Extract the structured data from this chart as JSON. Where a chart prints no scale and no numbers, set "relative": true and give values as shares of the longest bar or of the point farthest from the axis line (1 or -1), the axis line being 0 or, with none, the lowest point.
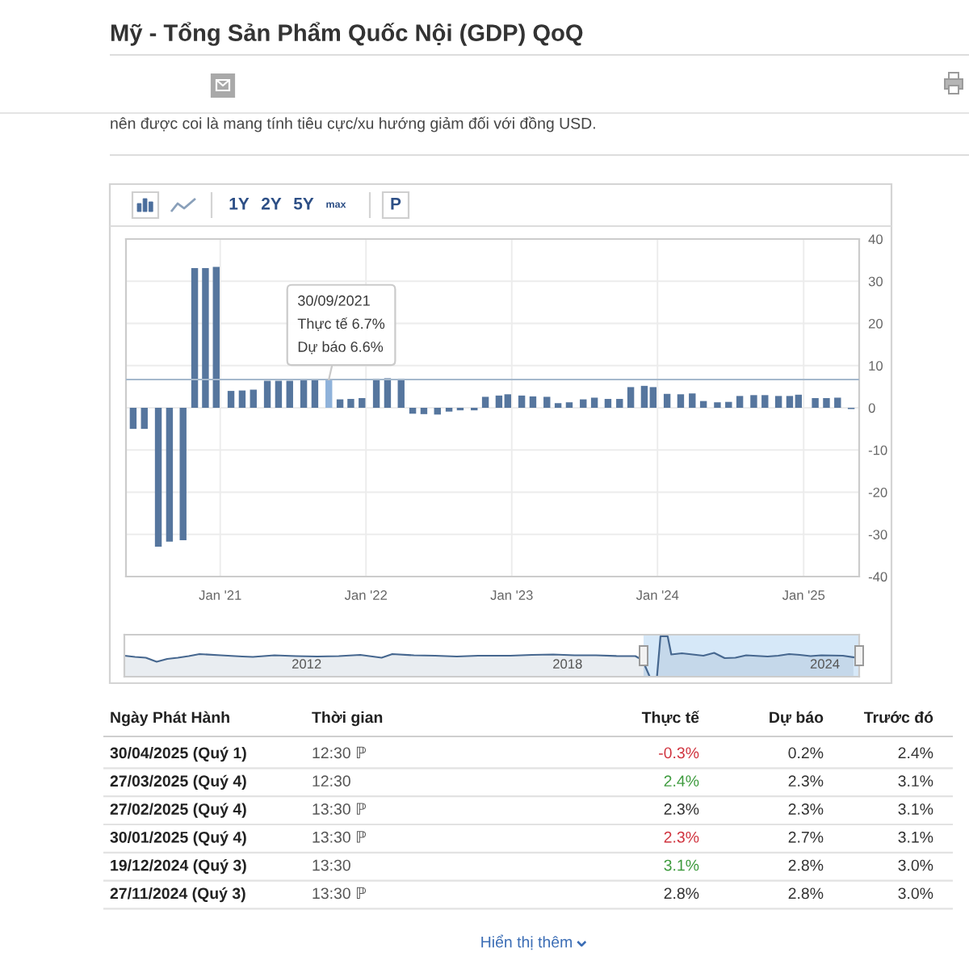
{
  "chart_data": [
    {
      "type": "bar",
      "title": "Mỹ - Tổng Sản Phẩm Quốc Nội (GDP) QoQ",
      "annotations": [
        "nên được coi là mang tính tiêu cực/xu hướng giảm đối với đồng USD.",
        "1Y",
        "2Y",
        "5Y",
        "max",
        "P",
        {
          "text": "30/09/2021\nThực tế 6.7%\nDự báo 6.6%",
          "x": "2021-09-30",
          "y": 6.7
        }
      ],
      "x": [
        "2020-05-28",
        "2020-06-25",
        "2020-07-30",
        "2020-08-27",
        "2020-09-30",
        "2020-10-29",
        "2020-11-25",
        "2020-12-22",
        "2021-01-28",
        "2021-02-25",
        "2021-03-25",
        "2021-04-29",
        "2021-05-27",
        "2021-06-24",
        "2021-07-29",
        "2021-08-26",
        "2021-09-30",
        "2021-10-28",
        "2021-11-24",
        "2021-12-22",
        "2022-01-27",
        "2022-02-24",
        "2022-03-30",
        "2022-04-28",
        "2022-05-26",
        "2022-06-29",
        "2022-07-28",
        "2022-08-25",
        "2022-09-29",
        "2022-10-27",
        "2022-11-30",
        "2022-12-22",
        "2023-01-26",
        "2023-02-23",
        "2023-03-30",
        "2023-04-27",
        "2023-05-25",
        "2023-06-29",
        "2023-07-27",
        "2023-08-30",
        "2023-09-28",
        "2023-10-26",
        "2023-11-29",
        "2023-12-21",
        "2024-01-25",
        "2024-02-28",
        "2024-03-28",
        "2024-04-25",
        "2024-05-30",
        "2024-06-27",
        "2024-07-25",
        "2024-08-29",
        "2024-09-26",
        "2024-10-30",
        "2024-11-27",
        "2024-12-19",
        "2025-01-30",
        "2025-02-27",
        "2025-03-27",
        "2025-04-30"
      ],
      "values": [
        -5.0,
        -5.0,
        -32.9,
        -31.7,
        -31.4,
        33.1,
        33.1,
        33.4,
        4.0,
        4.1,
        4.3,
        6.4,
        6.4,
        6.4,
        6.5,
        6.6,
        6.7,
        2.0,
        2.1,
        2.3,
        6.9,
        7.0,
        6.9,
        -1.4,
        -1.5,
        -1.6,
        -0.9,
        -0.6,
        -0.6,
        2.6,
        2.9,
        3.2,
        2.9,
        2.7,
        2.6,
        1.1,
        1.3,
        2.0,
        2.4,
        2.1,
        2.1,
        4.9,
        5.2,
        4.9,
        3.3,
        3.2,
        3.4,
        1.6,
        1.3,
        1.4,
        2.8,
        3.0,
        3.0,
        2.8,
        2.8,
        3.1,
        2.3,
        2.3,
        2.4,
        -0.3
      ],
      "colors": [
        "#56769e",
        "#56769e",
        "#56769e",
        "#56769e",
        "#56769e",
        "#56769e",
        "#56769e",
        "#56769e",
        "#56769e",
        "#56769e",
        "#56769e",
        "#56769e",
        "#56769e",
        "#56769e",
        "#56769e",
        "#56769e",
        "#8fb2da",
        "#56769e",
        "#56769e",
        "#56769e",
        "#56769e",
        "#56769e",
        "#56769e",
        "#56769e",
        "#56769e",
        "#56769e",
        "#56769e",
        "#56769e",
        "#56769e",
        "#56769e",
        "#56769e",
        "#56769e",
        "#56769e",
        "#56769e",
        "#56769e",
        "#56769e",
        "#56769e",
        "#56769e",
        "#56769e",
        "#56769e",
        "#56769e",
        "#56769e",
        "#56769e",
        "#56769e",
        "#56769e",
        "#56769e",
        "#56769e",
        "#56769e",
        "#56769e",
        "#56769e",
        "#56769e",
        "#56769e",
        "#56769e",
        "#56769e",
        "#56769e",
        "#56769e",
        "#56769e",
        "#56769e",
        "#56769e",
        "#56769e"
      ],
      "xlim": [
        "2020-05-10",
        "2025-05-20"
      ],
      "xticks": [
        {
          "value": "2021-01-01",
          "label": "Jan '21"
        },
        {
          "value": "2022-01-01",
          "label": "Jan '22"
        },
        {
          "value": "2023-01-01",
          "label": "Jan '23"
        },
        {
          "value": "2024-01-01",
          "label": "Jan '24"
        },
        {
          "value": "2025-01-01",
          "label": "Jan '25"
        }
      ],
      "ylim": [
        -40,
        40
      ],
      "yticks": [
        -40,
        -30,
        -20,
        -10,
        0,
        10,
        20,
        30,
        40
      ],
      "grid": true,
      "ref_lines": [
        {
          "axis": "y",
          "value": 6.7,
          "color": "#a5b8cc"
        }
      ]
    },
    {
      "type": "area",
      "relative": true,
      "color": "#46678f",
      "tick_labels": "x",
      "x": [
        "2008-04-01",
        "2008-07",
        "2008-10",
        "2009-01",
        "2009-04",
        "2009-07",
        "2009-10",
        "2010-01",
        "2010-07",
        "2011-01",
        "2011-04",
        "2011-10",
        "2012-04",
        "2012-10",
        "2013-04",
        "2013-10",
        "2014-04",
        "2014-07",
        "2015-01",
        "2015-07",
        "2016-01",
        "2016-07",
        "2017-04",
        "2017-10",
        "2018-04",
        "2018-10",
        "2019-04",
        "2019-10",
        "2020-03",
        "2020-05",
        "2020-07",
        "2020-09",
        "2020-10",
        "2020-12",
        "2021-01",
        "2021-04",
        "2021-10",
        "2022-01",
        "2022-04",
        "2022-07",
        "2022-10",
        "2023-04",
        "2023-07",
        "2023-10",
        "2024-01",
        "2024-04",
        "2024-07",
        "2025-01",
        "2025-04"
      ],
      "values": [
        0.52,
        0.49,
        0.47,
        0.37,
        0.44,
        0.47,
        0.51,
        0.56,
        0.53,
        0.5,
        0.49,
        0.53,
        0.51,
        0.5,
        0.51,
        0.54,
        0.47,
        0.56,
        0.53,
        0.52,
        0.5,
        0.52,
        0.52,
        0.54,
        0.55,
        0.53,
        0.53,
        0.51,
        0.51,
        0.41,
        0.0,
        0.0,
        1.0,
        1.0,
        0.55,
        0.58,
        0.52,
        0.59,
        0.46,
        0.47,
        0.53,
        0.5,
        0.52,
        0.56,
        0.54,
        0.51,
        0.53,
        0.52,
        0.48
      ],
      "xlim": [
        "2008-04-01",
        "2025-05-20"
      ],
      "xticks": [
        {
          "value": "2012-07-01",
          "label": "2012"
        },
        {
          "value": "2018-08-01",
          "label": "2018"
        },
        {
          "value": "2024-08-01",
          "label": "2024"
        }
      ],
      "bands": [
        {
          "axis": "x",
          "from": "2020-05-10",
          "to": "2025-05-20",
          "color": "#d6e8f8"
        }
      ]
    },
    {
      "type": "other",
      "annotations": [
        "Ngày Phát Hành\tThời gian\tThực tế\tDự báo\tTrước đó",
        "30/04/2025 (Quý 1)\t12:30 ℙ\t-0.3%\t0.2%\t2.4%",
        "27/03/2025 (Quý 4)\t12:30\t2.4%\t2.3%\t3.1%",
        "27/02/2025 (Quý 4)\t13:30 ℙ\t2.3%\t2.3%\t3.1%",
        "30/01/2025 (Quý 4)\t13:30 ℙ\t2.3%\t2.7%\t3.1%",
        "19/12/2024 (Quý 3)\t13:30\t3.1%\t2.8%\t3.0%",
        "27/11/2024 (Quý 3)\t13:30 ℙ\t2.8%\t2.8%\t3.0%",
        "Hiển thị thêm"
      ]
    }
  ]
}
